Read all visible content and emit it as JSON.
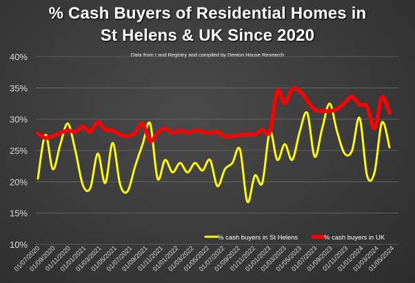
{
  "chart_data": {
    "type": "line",
    "title_line_1": "% Cash Buyers of Residential Homes in",
    "title_line_2": "St Helens & UK Since 2020",
    "subtitle": "Data from Land Registry and compiled by Denton House Research",
    "xlabel": "",
    "ylabel": "",
    "ylim": [
      10,
      40
    ],
    "yticks": [
      "10%",
      "15%",
      "20%",
      "25%",
      "30%",
      "35%",
      "40%"
    ],
    "grid": true,
    "legend_position": "bottom-right",
    "x_labels": [
      "01/07/2020",
      "01/09/2020",
      "01/11/2020",
      "01/01/2021",
      "01/03/2021",
      "01/05/2021",
      "01/07/2021",
      "01/09/2021",
      "01/11/2021",
      "01/01/2022",
      "01/03/2022",
      "01/05/2022",
      "01/07/2022",
      "01/09/2022",
      "01/11/2022",
      "01/01/2023",
      "01/03/2023",
      "01/05/2023",
      "01/07/2023",
      "01/09/2023",
      "01/11/2023",
      "01/01/2024",
      "01/03/2024",
      "01/05/2024"
    ],
    "series": [
      {
        "name": "% cash buyers in St Helens",
        "color": "#ffff00",
        "values": [
          20.5,
          27.5,
          22,
          26,
          29.3,
          25,
          19.5,
          19,
          24.5,
          19.8,
          26.2,
          19.5,
          18.5,
          22.5,
          26,
          29.3,
          20.5,
          23.5,
          21.5,
          23,
          21.5,
          23,
          21.8,
          23.5,
          19.3,
          22,
          23,
          25.2,
          16.8,
          21,
          19.8,
          28,
          23.5,
          26,
          23.5,
          28,
          31,
          24,
          28.5,
          32.5,
          28,
          24.5,
          25,
          30.2,
          21,
          21.5,
          29.5,
          25.5
        ]
      },
      {
        "name": "% cash buyers in UK",
        "color": "#ff0000",
        "values": [
          27.7,
          27,
          27.3,
          27.8,
          28.2,
          28.0,
          28.8,
          28.0,
          29.5,
          28.3,
          28.2,
          27.5,
          27.3,
          27.8,
          29.3,
          26.5,
          27.8,
          28.5,
          27.8,
          28.2,
          27.8,
          28.2,
          28.0,
          27.8,
          28.0,
          27.2,
          27.3,
          27.4,
          27.6,
          27.5,
          28.3,
          28.0,
          34.5,
          32.5,
          34.8,
          34.5,
          33.0,
          31.5,
          31.3,
          31.3,
          31.6,
          32.6,
          33.6,
          32.3,
          32.0,
          28.5,
          33.5,
          31.0
        ]
      }
    ]
  }
}
